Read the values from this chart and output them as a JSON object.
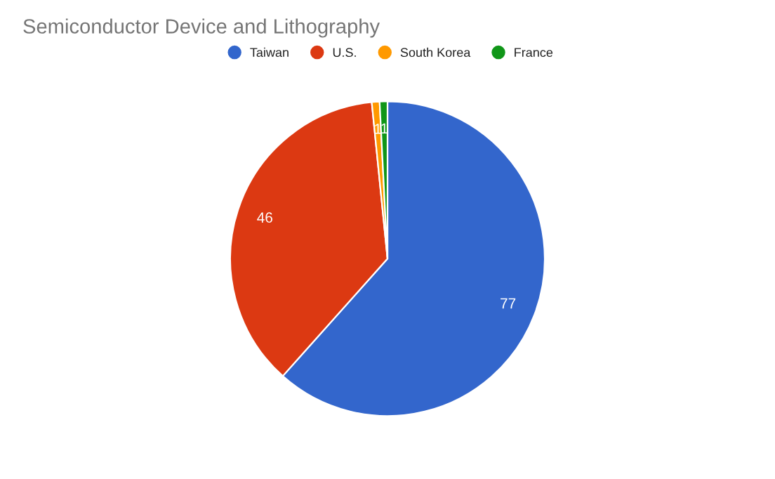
{
  "chart_data": {
    "type": "pie",
    "title": "Semiconductor Device and Lithography",
    "categories": [
      "Taiwan",
      "U.S.",
      "South Korea",
      "France"
    ],
    "values": [
      77,
      46,
      1,
      1
    ],
    "colors": [
      "#3366cc",
      "#dc3912",
      "#ff9900",
      "#109618"
    ],
    "data_labels": true,
    "legend": "top"
  }
}
